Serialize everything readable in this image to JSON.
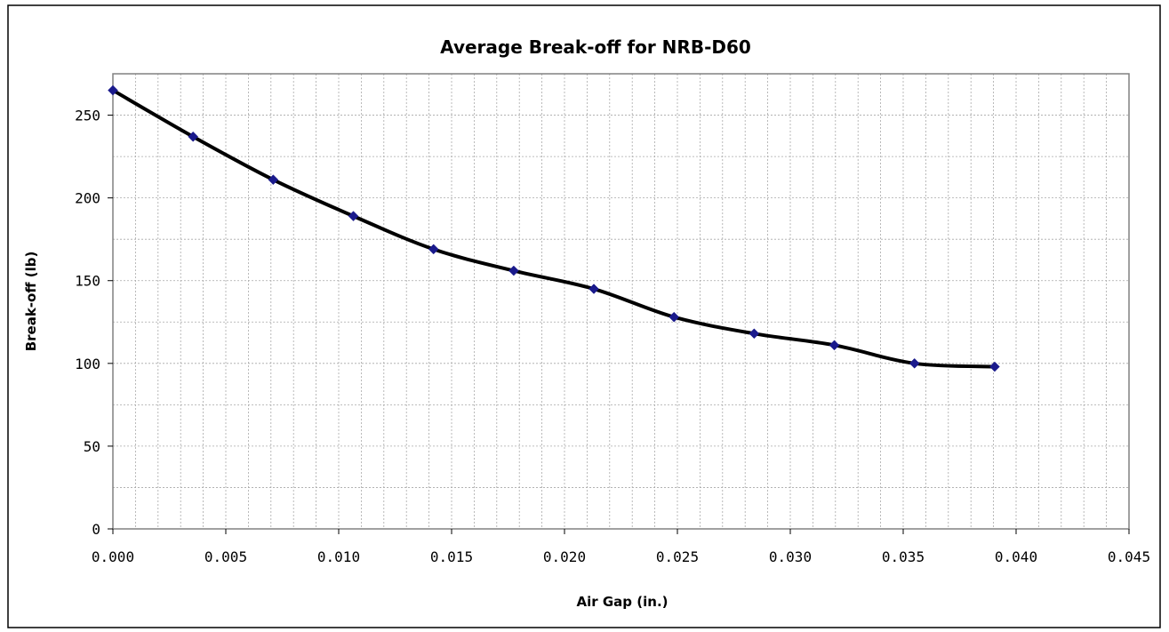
{
  "chart_data": {
    "type": "line",
    "title": "Average Break-off for NRB-D60",
    "xlabel": "Air Gap (in.)",
    "ylabel": "Break-off (lb)",
    "xlim": [
      0,
      0.045
    ],
    "ylim": [
      0,
      275
    ],
    "x_ticks": [
      "0.000",
      "0.005",
      "0.010",
      "0.015",
      "0.020",
      "0.025",
      "0.030",
      "0.035",
      "0.040",
      "0.045"
    ],
    "y_ticks": [
      "0",
      "50",
      "100",
      "150",
      "200",
      "250"
    ],
    "grid": true,
    "legend": "none",
    "series": [
      {
        "x": [
          0.0,
          0.00355,
          0.0071,
          0.01065,
          0.0142,
          0.01775,
          0.0213,
          0.02485,
          0.0284,
          0.03195,
          0.0355,
          0.03905
        ],
        "y": [
          265,
          237,
          211,
          189,
          169,
          156,
          145,
          128,
          118,
          111,
          100,
          98
        ],
        "line_color": "#000000",
        "marker_color": "#1a1a8c"
      }
    ]
  }
}
